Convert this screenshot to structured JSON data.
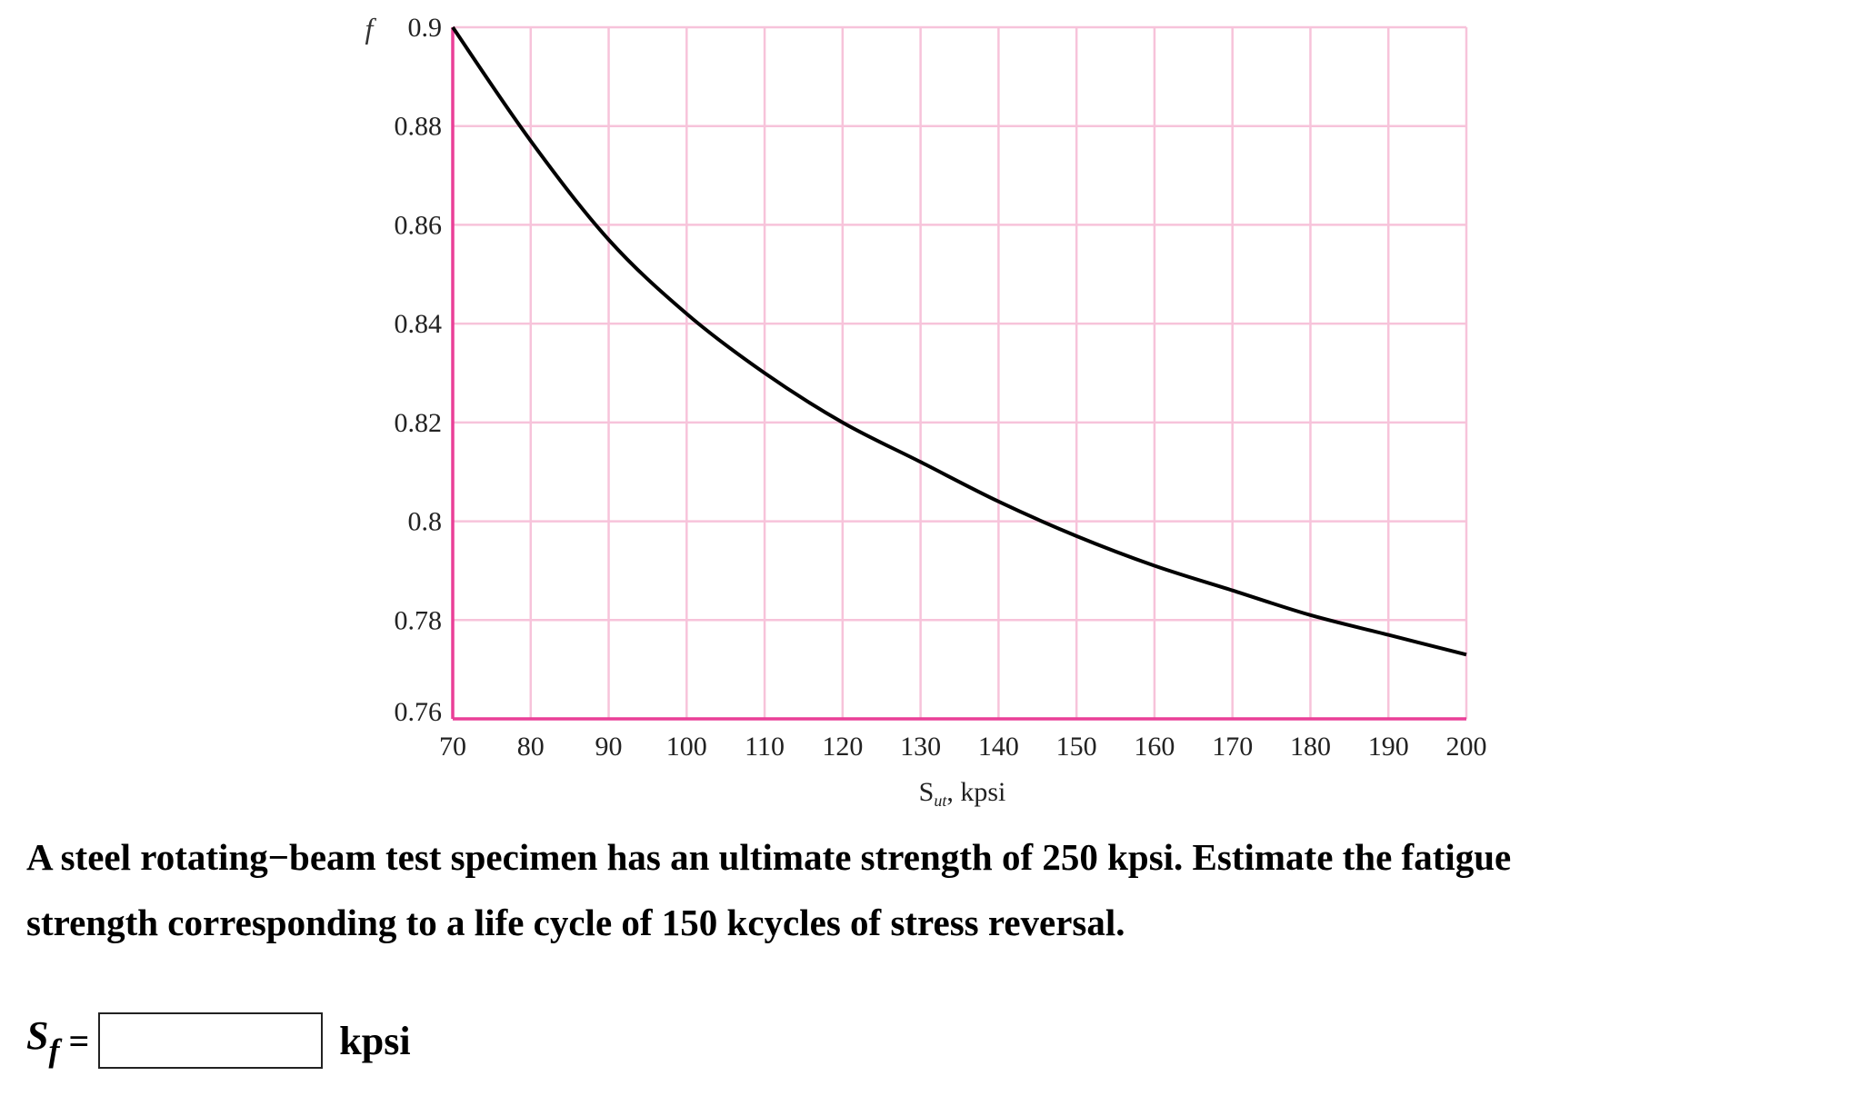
{
  "chart_data": {
    "type": "line",
    "ylabel": "f",
    "xlabel": "S",
    "xlabel_sub": "ut",
    "xlabel_unit": ", kpsi",
    "xlim": [
      70,
      200
    ],
    "ylim": [
      0.76,
      0.9
    ],
    "xticks": [
      "70",
      "80",
      "90",
      "100",
      "110",
      "120",
      "130",
      "140",
      "150",
      "160",
      "170",
      "180",
      "190",
      "200"
    ],
    "yticks": [
      "0.76",
      "0.78",
      "0.8",
      "0.82",
      "0.84",
      "0.86",
      "0.88",
      "0.9"
    ],
    "grid": true,
    "series": [
      {
        "x": [
          70,
          80,
          90,
          100,
          110,
          120,
          130,
          140,
          150,
          160,
          170,
          180,
          190,
          200
        ],
        "y": [
          0.9,
          0.877,
          0.857,
          0.842,
          0.83,
          0.82,
          0.812,
          0.804,
          0.797,
          0.791,
          0.786,
          0.781,
          0.777,
          0.773
        ]
      }
    ],
    "colors": {
      "grid": "#f7c3da",
      "axis": "#ea3f97",
      "line": "#000000"
    }
  },
  "question": {
    "line1": "A steel rotating−beam test specimen has an ultimate strength of 250 kpsi. Estimate the fatigue",
    "line2": "strength corresponding to a life cycle of 150 kcycles of stress reversal."
  },
  "answer": {
    "symbol": "S",
    "subscript": "f",
    "equals": "=",
    "value": "",
    "unit": "kpsi"
  }
}
